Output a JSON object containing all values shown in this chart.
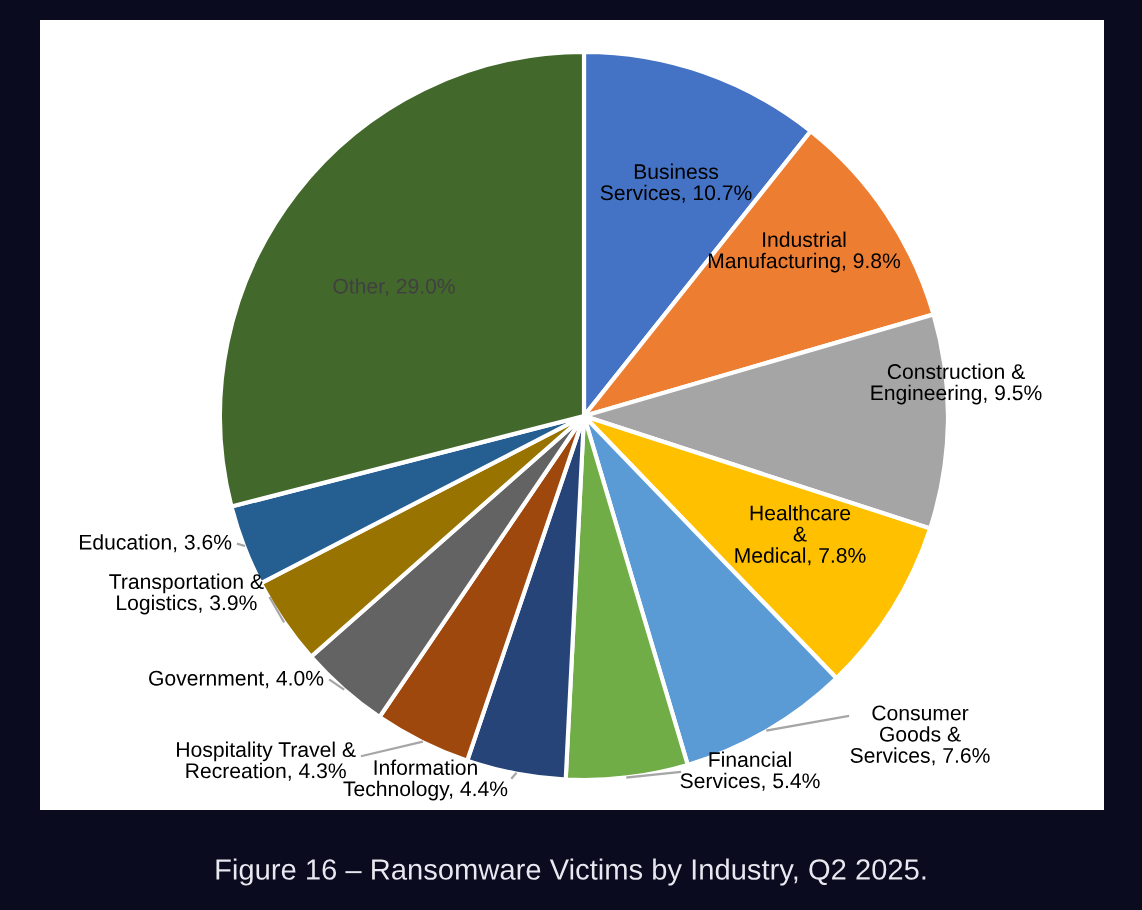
{
  "chart_data": {
    "type": "pie",
    "title": "Figure 16 – Ransomware Victims by Industry, Q2 2025.",
    "categories": [
      "Business Services",
      "Industrial Manufacturing",
      "Construction & Engineering",
      "Healthcare & Medical",
      "Consumer Goods & Services",
      "Financial Services",
      "Information Technology",
      "Hospitality Travel & Recreation",
      "Government",
      "Transportation & Logistics",
      "Education",
      "Other"
    ],
    "values": [
      10.7,
      9.8,
      9.5,
      7.8,
      7.6,
      5.4,
      4.4,
      4.3,
      4.0,
      3.9,
      3.6,
      29.0
    ],
    "value_labels": [
      "10.7%",
      "9.8%",
      "9.5%",
      "7.8%",
      "7.6%",
      "5.4%",
      "4.4%",
      "4.3%",
      "4.0%",
      "3.9%",
      "3.6%",
      "29.0%"
    ],
    "colors": [
      "#4472c4",
      "#ed7d31",
      "#a5a5a5",
      "#ffc000",
      "#5b9bd5",
      "#70ad47",
      "#264478",
      "#9e480e",
      "#636363",
      "#997300",
      "#255e91",
      "#43682b"
    ]
  }
}
